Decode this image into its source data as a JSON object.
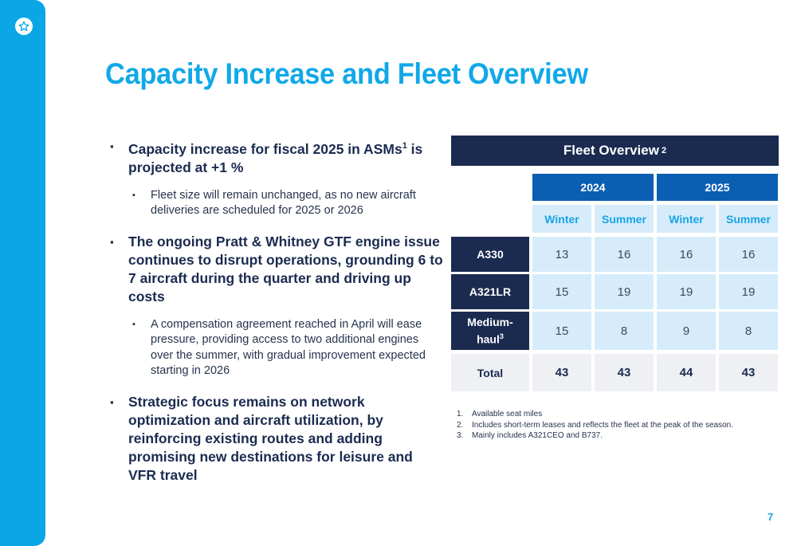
{
  "title": "Capacity Increase and Fleet Overview",
  "bullets": {
    "b1_text": "Capacity increase for fiscal 2025 in ASMs",
    "b1_sup": "1",
    "b1_tail": " is projected at +1 %",
    "b1_sub": "Fleet size will remain unchanged, as no new aircraft deliveries are scheduled for 2025 or 2026",
    "b2_text": "The ongoing Pratt & Whitney GTF engine issue continues to disrupt operations, grounding 6 to 7 aircraft during the quarter and driving up costs",
    "b2_sub": "A compensation agreement reached in April will ease pressure, providing access to two additional engines over the summer, with gradual improvement expected starting in 2026",
    "b3_text": "Strategic focus remains on network optimization and aircraft utilization, by reinforcing existing routes and adding promising new destinations for leisure and VFR travel"
  },
  "fleet": {
    "header": "Fleet Overview",
    "header_sup": "2",
    "years": [
      "2024",
      "2025"
    ],
    "seasons": [
      "Winter",
      "Summer",
      "Winter",
      "Summer"
    ],
    "rows": [
      {
        "label": "A330",
        "sup": "",
        "values": [
          "13",
          "16",
          "16",
          "16"
        ]
      },
      {
        "label": "A321LR",
        "sup": "",
        "values": [
          "15",
          "19",
          "19",
          "19"
        ]
      },
      {
        "label": "Medium-haul",
        "sup": "3",
        "values": [
          "15",
          "8",
          "9",
          "8"
        ]
      }
    ],
    "total": {
      "label": "Total",
      "values": [
        "43",
        "43",
        "44",
        "43"
      ]
    }
  },
  "footnotes": [
    {
      "num": "1.",
      "text": "Available seat miles"
    },
    {
      "num": "2.",
      "text": "Includes short-term leases and reflects the fleet at the peak of the season."
    },
    {
      "num": "3.",
      "text": "Mainly includes A321CEO and B737."
    }
  ],
  "page_number": "7",
  "colors": {
    "accent": "#10a8e8",
    "navy": "#1b2b50",
    "year_blue": "#0a5fb3",
    "cell_light": "#d6ecfa"
  }
}
